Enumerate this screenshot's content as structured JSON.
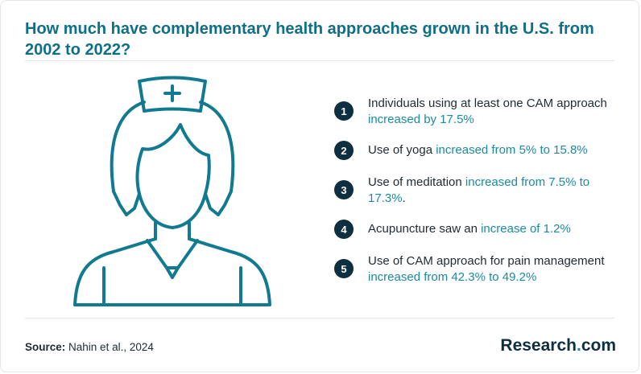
{
  "title": "How much have complementary health approaches grown in the U.S. from 2002 to 2022?",
  "items": [
    {
      "number": "1",
      "pre": "Individuals using at least one CAM approach",
      "highlight": "increased by 17.5%",
      "post": ""
    },
    {
      "number": "2",
      "pre": "Use of yoga",
      "highlight": "increased from 5% to 15.8%",
      "post": ""
    },
    {
      "number": "3",
      "pre": "Use of meditation",
      "highlight": "increased from 7.5% to 17.3%",
      "post": "."
    },
    {
      "number": "4",
      "pre": "Acupuncture saw an",
      "highlight": "increase of 1.2%",
      "post": ""
    },
    {
      "number": "5",
      "pre": "Use of CAM approach for pain management",
      "highlight": "increased from 42.3% to 49.2%",
      "post": ""
    }
  ],
  "source": {
    "label": "Source:",
    "text": "Nahin et al., 2024"
  },
  "logo": {
    "brand": "Research",
    "dot": ".",
    "tld": "com"
  },
  "illustration": {
    "icon": "nurse-icon"
  },
  "colors": {
    "title": "#0e6f85",
    "accent": "#1b8aa3",
    "dark": "#0e2f3f",
    "stroke": "#117a90"
  }
}
